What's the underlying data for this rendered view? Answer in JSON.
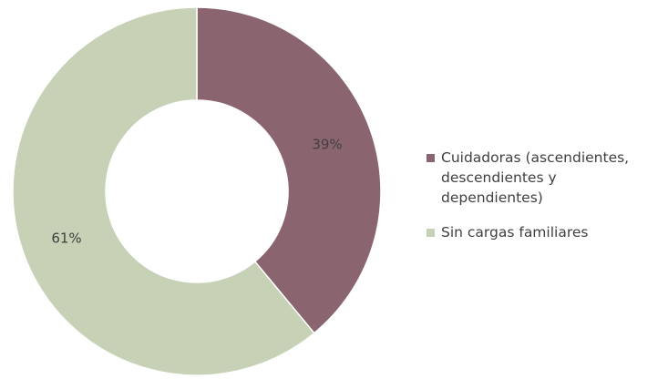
{
  "chart_data": {
    "type": "pie",
    "variant": "donut",
    "title": "",
    "slices": [
      {
        "label": "Cuidadoras (ascendientes, descendientes y dependientes)",
        "value": 39,
        "value_label": "39%",
        "color": "#8a6570"
      },
      {
        "label": "Sin cargas familiares",
        "value": 61,
        "value_label": "61%",
        "color": "#c6d1b6"
      }
    ],
    "legend_position": "right"
  }
}
